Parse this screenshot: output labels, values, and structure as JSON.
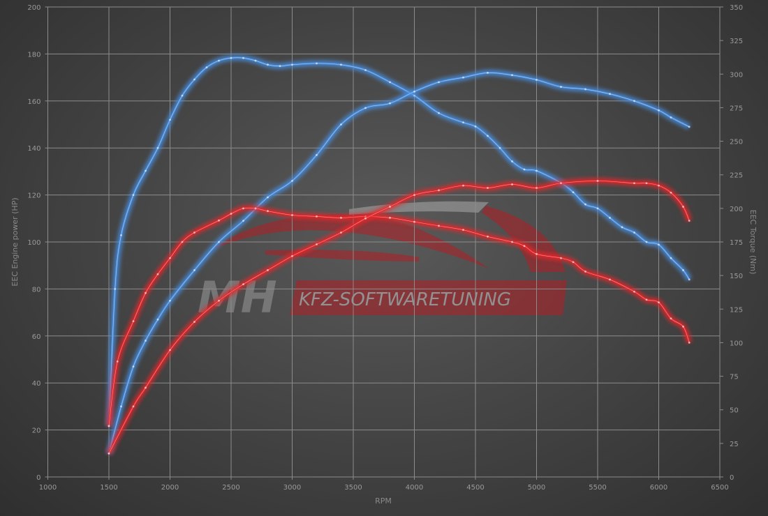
{
  "chart_data": {
    "type": "line",
    "xlabel": "RPM",
    "ylabel": "EEC Engine power (HP)",
    "y2label": "EEC Torque (Nm)",
    "xlim": [
      1000,
      6500
    ],
    "ylim": [
      0,
      200
    ],
    "y2lim": [
      0,
      350
    ],
    "xticks": [
      1000,
      1500,
      2000,
      2500,
      3000,
      3500,
      4000,
      4500,
      5000,
      5500,
      6000,
      6500
    ],
    "yticks": [
      0,
      20,
      40,
      60,
      80,
      100,
      120,
      140,
      160,
      180,
      200
    ],
    "y2ticks": [
      0,
      25,
      50,
      75,
      100,
      125,
      150,
      175,
      200,
      225,
      250,
      275,
      300,
      325,
      350
    ],
    "grid": true,
    "series": [
      {
        "color": "#4a90e2",
        "axis": "right",
        "x": [
          1500,
          1550,
          1600,
          1700,
          1800,
          1900,
          2000,
          2100,
          2200,
          2300,
          2400,
          2500,
          2600,
          2700,
          2800,
          2900,
          3000,
          3200,
          3400,
          3600,
          3800,
          4000,
          4200,
          4400,
          4500,
          4600,
          4700,
          4800,
          4900,
          5000,
          5200,
          5300,
          5400,
          5500,
          5600,
          5700,
          5800,
          5900,
          6000,
          6100,
          6200,
          6250
        ],
        "y": [
          38,
          140,
          180,
          210,
          228,
          245,
          266,
          284,
          296,
          305,
          310,
          312,
          312,
          310,
          307,
          306,
          307,
          308,
          307,
          303,
          294,
          284,
          271,
          264,
          261,
          254,
          245,
          235,
          229,
          228,
          219,
          212,
          203,
          200,
          193,
          186,
          182,
          175,
          173,
          163,
          154,
          147
        ]
      },
      {
        "color": "#4a90e2",
        "axis": "left",
        "x": [
          1500,
          1600,
          1700,
          1800,
          1900,
          2000,
          2200,
          2400,
          2600,
          2800,
          3000,
          3200,
          3400,
          3600,
          3800,
          4000,
          4200,
          4400,
          4600,
          4800,
          5000,
          5200,
          5400,
          5600,
          5800,
          6000,
          6100,
          6250
        ],
        "y": [
          10,
          30,
          47,
          58,
          67,
          75,
          88,
          100,
          109,
          119,
          126,
          137,
          150,
          157,
          159,
          164,
          168,
          170,
          172,
          171,
          169,
          166,
          165,
          163,
          160,
          156,
          153,
          149
        ]
      },
      {
        "color": "#e8262a",
        "axis": "right",
        "x": [
          1500,
          1570,
          1700,
          1800,
          1900,
          2000,
          2100,
          2200,
          2400,
          2500,
          2600,
          2700,
          2800,
          3000,
          3200,
          3400,
          3600,
          3800,
          4000,
          4200,
          4400,
          4600,
          4800,
          4900,
          5000,
          5200,
          5300,
          5400,
          5600,
          5800,
          5900,
          6000,
          6100,
          6200,
          6250
        ],
        "y": [
          38,
          86,
          116,
          137,
          151,
          163,
          175,
          182,
          191,
          196,
          200,
          200,
          198,
          195,
          194,
          193,
          194,
          193,
          190,
          187,
          184,
          179,
          175,
          172,
          166,
          163,
          160,
          153,
          147,
          138,
          132,
          130,
          118,
          112,
          100
        ]
      },
      {
        "color": "#e8262a",
        "axis": "left",
        "x": [
          1500,
          1700,
          1800,
          2000,
          2200,
          2400,
          2600,
          2800,
          3000,
          3200,
          3400,
          3600,
          3800,
          4000,
          4200,
          4400,
          4600,
          4800,
          5000,
          5200,
          5500,
          5800,
          5900,
          6000,
          6100,
          6200,
          6250
        ],
        "y": [
          10,
          30,
          38,
          54,
          66,
          75,
          82,
          88,
          94,
          99,
          104,
          110,
          115,
          120,
          122,
          124,
          123,
          124.5,
          123,
          125,
          126,
          125,
          125,
          124,
          121,
          115,
          109
        ]
      }
    ]
  },
  "watermark": {
    "logo_text": "MH",
    "tagline": "KFZ-SOFTWARETUNING"
  }
}
